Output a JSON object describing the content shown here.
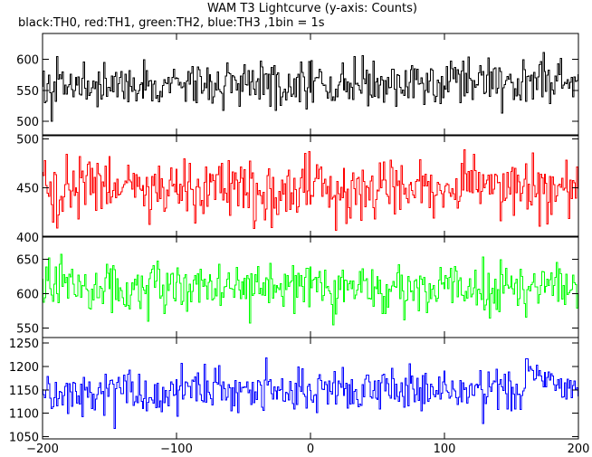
{
  "figure": {
    "title": "WAM T3 Lightcurve (y-axis: Counts)",
    "subtitle": "black:TH0, red:TH1, green:TH2, blue:TH3 ,1bin = 1s"
  },
  "chart_data": {
    "type": "line",
    "title": "WAM T3 Lightcurve (y-axis: Counts)",
    "subtitle": "black:TH0, red:TH1, green:TH2, blue:TH3 ,1bin = 1s",
    "xlabel": "",
    "ylabel": "Counts",
    "xlim": [
      -200,
      200
    ],
    "x_ticks": [
      -200,
      -100,
      0,
      100,
      200
    ],
    "x_tick_labels": [
      "−200",
      "−100",
      "0",
      "100",
      "200"
    ],
    "grid": false,
    "legend": "none",
    "x": {
      "start": -200,
      "end": 200,
      "step": 1
    },
    "panels": [
      {
        "name": "TH0",
        "color": "#000000",
        "ylim": [
          478,
          642
        ],
        "y_ticks": [
          500,
          550,
          600
        ],
        "y_tick_labels": [
          "500",
          "550",
          "600"
        ],
        "mean": 558,
        "amplitude": 24,
        "values_summary": "noisy counts ~510-630, slight rise toward +200"
      },
      {
        "name": "TH1",
        "color": "#ff0000",
        "ylim": [
          400,
          503
        ],
        "y_ticks": [
          400,
          450,
          500
        ],
        "y_tick_labels": [
          "400",
          "450",
          "500"
        ],
        "mean": 450,
        "amplitude": 20,
        "values_summary": "noisy counts ~405-500"
      },
      {
        "name": "TH2",
        "color": "#00ff00",
        "ylim": [
          536,
          684
        ],
        "y_ticks": [
          550,
          600,
          650
        ],
        "y_tick_labels": [
          "550",
          "600",
          "650"
        ],
        "mean": 608,
        "amplitude": 24,
        "values_summary": "noisy counts ~550-680"
      },
      {
        "name": "TH3",
        "color": "#0000ff",
        "ylim": [
          1045,
          1262
        ],
        "y_ticks": [
          1050,
          1100,
          1150,
          1200,
          1250
        ],
        "y_tick_labels": [
          "1050",
          "1100",
          "1150",
          "1200",
          "1250"
        ],
        "mean": 1142,
        "amplitude": 30,
        "values_summary": "noisy counts ~1060-1255, brief peak near +170"
      }
    ]
  }
}
